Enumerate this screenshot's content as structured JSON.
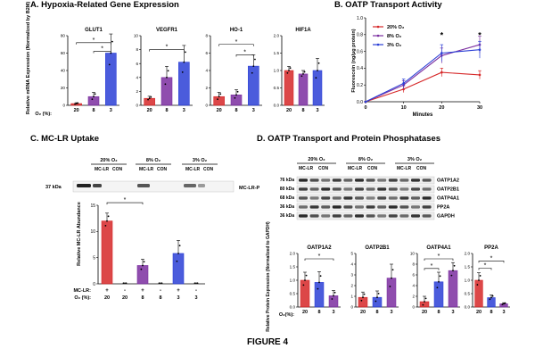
{
  "figure_label": "FIGURE 4",
  "panels": {
    "a": {
      "title": "A. Hypoxia-Related Gene Expression",
      "ylabel": "Relative mRNA Expression (Normalized by B2M)",
      "o2_label": "O₂ (%):"
    },
    "b": {
      "title": "B. OATP Transport Activity"
    },
    "c": {
      "title": "C. MC-LR Uptake",
      "blot_kda": "37 kDa",
      "blot_label": "MC-LR-P",
      "ylabel": "Relative MC-LR Abundance"
    },
    "d": {
      "title": "D. OATP Transport and Protein Phosphatases",
      "ylabel": "Relative Protein Expression (Normalized to GAPDH)",
      "o2_label": "O₂(%):"
    }
  },
  "chart_data": [
    {
      "id": "A",
      "type": "bar",
      "ylabel": "Relative mRNA Expression (Normalized by B2M)",
      "categories": [
        "20",
        "8",
        "3"
      ],
      "xlabel": "O2 (%)",
      "colors": [
        "#d62728",
        "#7b2ea0",
        "#2b3fd6"
      ],
      "subplots": [
        {
          "title": "GLUT1",
          "ylim": [
            0,
            80
          ],
          "yticks": [
            "0",
            "20",
            "40",
            "60",
            "80"
          ],
          "values": [
            2,
            10,
            60
          ],
          "errors": [
            1,
            5,
            22
          ],
          "sig": [
            [
              1,
              2,
              62
            ],
            [
              0,
              2,
              72
            ]
          ]
        },
        {
          "title": "VEGFR1",
          "ylim": [
            0,
            10
          ],
          "yticks": [
            "0",
            "2",
            "4",
            "6",
            "8",
            "10"
          ],
          "values": [
            1,
            4,
            6.2
          ],
          "errors": [
            0.3,
            1.6,
            2.4
          ],
          "sig": [
            [
              0,
              2,
              8
            ]
          ]
        },
        {
          "title": "HO-1",
          "ylim": [
            0,
            8
          ],
          "yticks": [
            "0",
            "2",
            "4",
            "6",
            "8"
          ],
          "values": [
            1,
            1.2,
            4.5
          ],
          "errors": [
            0.5,
            0.6,
            1.3
          ],
          "sig": [
            [
              1,
              2,
              5.8
            ],
            [
              0,
              2,
              7
            ]
          ]
        },
        {
          "title": "HIF1A",
          "ylim": [
            0,
            2.0
          ],
          "yticks": [
            "0.0",
            "0.5",
            "1.0",
            "1.5",
            "2.0"
          ],
          "values": [
            1.0,
            0.9,
            1.0
          ],
          "errors": [
            0.12,
            0.1,
            0.35
          ],
          "sig": []
        }
      ]
    },
    {
      "id": "B",
      "type": "line",
      "title": "OATP Transport Activity",
      "xlabel": "Minutes",
      "ylabel": "Fluorescein (ng/μg protein)",
      "x": [
        0,
        10,
        20,
        30
      ],
      "xticks": [
        "0",
        "10",
        "20",
        "30"
      ],
      "ylim": [
        0,
        1.0
      ],
      "yticks": [
        "0.0",
        "0.2",
        "0.4",
        "0.6",
        "0.8",
        "1.0"
      ],
      "series": [
        {
          "name": "20% O₂",
          "color": "#d62728",
          "values": [
            0,
            0.15,
            0.35,
            0.32
          ],
          "errors": [
            0,
            0.04,
            0.05,
            0.05
          ]
        },
        {
          "name": "8% O₂",
          "color": "#7b2ea0",
          "values": [
            0,
            0.2,
            0.55,
            0.68
          ],
          "errors": [
            0,
            0.05,
            0.09,
            0.1
          ]
        },
        {
          "name": "3% O₂",
          "color": "#2b3fd6",
          "values": [
            0,
            0.22,
            0.58,
            0.62
          ],
          "errors": [
            0,
            0.05,
            0.1,
            0.1
          ]
        }
      ],
      "annotations": [
        {
          "x": 20,
          "text": "*"
        },
        {
          "x": 30,
          "text": "*"
        }
      ]
    },
    {
      "id": "C",
      "type": "bar",
      "ylabel": "Relative MC-LR Abundance",
      "ylim": [
        0,
        15
      ],
      "yticks": [
        "0",
        "5",
        "10",
        "15"
      ],
      "groups": [
        {
          "o2": "20",
          "mclr": "+",
          "value": 12,
          "error": 1.5,
          "color": "#d62728"
        },
        {
          "o2": "20",
          "mclr": "-",
          "value": 0,
          "error": 0,
          "color": "#d62728"
        },
        {
          "o2": "8",
          "mclr": "+",
          "value": 3.5,
          "error": 1.2,
          "color": "#7b2ea0"
        },
        {
          "o2": "8",
          "mclr": "-",
          "value": 0,
          "error": 0,
          "color": "#7b2ea0"
        },
        {
          "o2": "3",
          "mclr": "+",
          "value": 5.8,
          "error": 2.5,
          "color": "#2b3fd6"
        },
        {
          "o2": "3",
          "mclr": "-",
          "value": 0,
          "error": 0,
          "color": "#2b3fd6"
        }
      ],
      "row_labels": [
        "MC-LR:",
        "O₂ (%):"
      ],
      "sig": [
        [
          0,
          2,
          15.5
        ],
        [
          0,
          4,
          18
        ]
      ]
    },
    {
      "id": "D",
      "type": "bar",
      "ylabel": "Relative Protein Expression (Normalized to GAPDH)",
      "categories": [
        "20",
        "8",
        "3"
      ],
      "xlabel": "O2(%)",
      "colors": [
        "#d62728",
        "#2b3fd6",
        "#7b2ea0"
      ],
      "subplots": [
        {
          "title": "OATP1A2",
          "ylim": [
            0,
            2.0
          ],
          "yticks": [
            "0.0",
            "0.5",
            "1.0",
            "1.5",
            "2.0"
          ],
          "values": [
            1.0,
            0.92,
            0.42
          ],
          "errors": [
            0.3,
            0.4,
            0.2
          ],
          "sig": [
            [
              0,
              2,
              1.8
            ]
          ]
        },
        {
          "title": "OATP2B1",
          "ylim": [
            0,
            5
          ],
          "yticks": [
            "0",
            "1",
            "2",
            "3",
            "4",
            "5"
          ],
          "values": [
            0.9,
            0.9,
            2.7
          ],
          "errors": [
            0.5,
            0.6,
            1.3
          ],
          "sig": []
        },
        {
          "title": "OATP4A1",
          "ylim": [
            0,
            10
          ],
          "yticks": [
            "0",
            "2",
            "4",
            "6",
            "8",
            "10"
          ],
          "values": [
            1.0,
            4.7,
            6.8
          ],
          "errors": [
            1.0,
            1.8,
            1.5
          ],
          "sig": [
            [
              0,
              1,
              7.2
            ],
            [
              0,
              2,
              9
            ]
          ]
        },
        {
          "title": "PP2A",
          "ylim": [
            0,
            2.0
          ],
          "yticks": [
            "0.0",
            "0.5",
            "1.0",
            "1.5",
            "2.0"
          ],
          "values": [
            1.0,
            0.35,
            0.12
          ],
          "errors": [
            0.28,
            0.1,
            0.04
          ],
          "sig": [
            [
              0,
              1,
              1.45
            ],
            [
              0,
              2,
              1.72
            ]
          ]
        }
      ]
    }
  ],
  "blots": {
    "c": {
      "groups": [
        "20% O₂",
        "8% O₂",
        "3% O₂"
      ],
      "lanes": [
        "MC-LR",
        "CON"
      ]
    },
    "d": {
      "groups": [
        "20% O₂",
        "8% O₂",
        "3% O₂"
      ],
      "lanes": [
        "MC-LR",
        "CON"
      ],
      "rows": [
        {
          "kda": "76 kDa",
          "label": "OATP1A2"
        },
        {
          "kda": "80 kDa",
          "label": "OATP2B1"
        },
        {
          "kda": "68 kDa",
          "label": "OATP4A1"
        },
        {
          "kda": "36 kDa",
          "label": "PP2A"
        },
        {
          "kda": "36 kDa",
          "label": "GAPDH"
        }
      ]
    }
  }
}
